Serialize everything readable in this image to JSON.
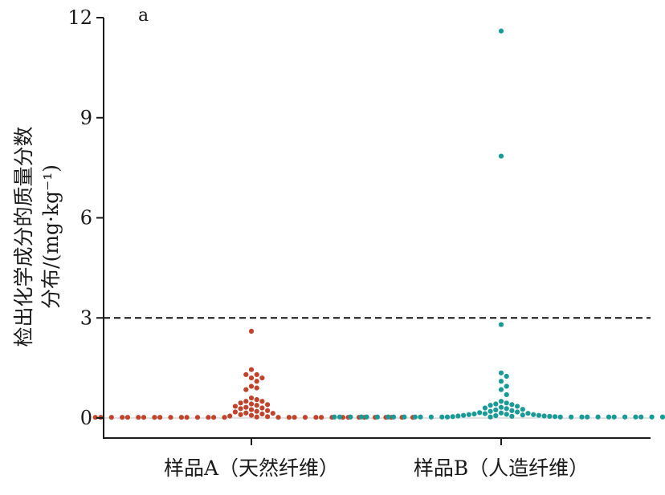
{
  "chart_data": {
    "type": "scatter",
    "subtype": "beeswarm",
    "panel_label": "a",
    "ylabel_line1": "检出化学成分的质量分数",
    "ylabel_line2": "分布/(mg·kg⁻¹)",
    "xlabel": "",
    "ylim": [
      0,
      12
    ],
    "yticks": [
      0,
      3,
      6,
      9,
      12
    ],
    "threshold": {
      "value": 3,
      "style": "dashed",
      "color": "#111111"
    },
    "zero_line_color": "#d9d9d9",
    "categories": [
      "样品A（天然纤维）",
      "样品B（人造纤维）"
    ],
    "series": [
      {
        "color": "#c0432c",
        "values": [
          2.6,
          1.45,
          1.3,
          1.3,
          1.2,
          1.2,
          1.1,
          0.95,
          0.9,
          0.85,
          0.6,
          0.55,
          0.5,
          0.5,
          0.45,
          0.42,
          0.4,
          0.38,
          0.35,
          0.32,
          0.3,
          0.28,
          0.25,
          0.22,
          0.2,
          0.18,
          0.15,
          0.14,
          0.12,
          0.1,
          0.08,
          0.06,
          0.04,
          0.03,
          0.02,
          0.02,
          0.02,
          0.02,
          0.02,
          0.02,
          0.02,
          0.02,
          0.02,
          0.02,
          0.02,
          0.02,
          0.02,
          0.02,
          0.02,
          0.02,
          0.02,
          0.02,
          0.02,
          0.02,
          0.02,
          0.02,
          0.02,
          0.02,
          0.02,
          0.02,
          0.02,
          0.02,
          0.02,
          0.02,
          0.02,
          0.02
        ]
      },
      {
        "color": "#1a9a96",
        "values": [
          11.6,
          7.85,
          2.8,
          1.35,
          1.25,
          1.1,
          0.95,
          0.85,
          0.7,
          0.5,
          0.45,
          0.42,
          0.4,
          0.38,
          0.35,
          0.32,
          0.3,
          0.28,
          0.26,
          0.24,
          0.22,
          0.2,
          0.18,
          0.16,
          0.15,
          0.14,
          0.13,
          0.12,
          0.11,
          0.1,
          0.1,
          0.09,
          0.08,
          0.08,
          0.07,
          0.06,
          0.06,
          0.05,
          0.05,
          0.04,
          0.04,
          0.03,
          0.03,
          0.03,
          0.03,
          0.03,
          0.03,
          0.03,
          0.03,
          0.03,
          0.03,
          0.03,
          0.03,
          0.03,
          0.03,
          0.03,
          0.03,
          0.03,
          0.03,
          0.03,
          0.03,
          0.03,
          0.03,
          0.03,
          0.03,
          0.03,
          0.03,
          0.03,
          0.03,
          0.03
        ]
      }
    ]
  }
}
